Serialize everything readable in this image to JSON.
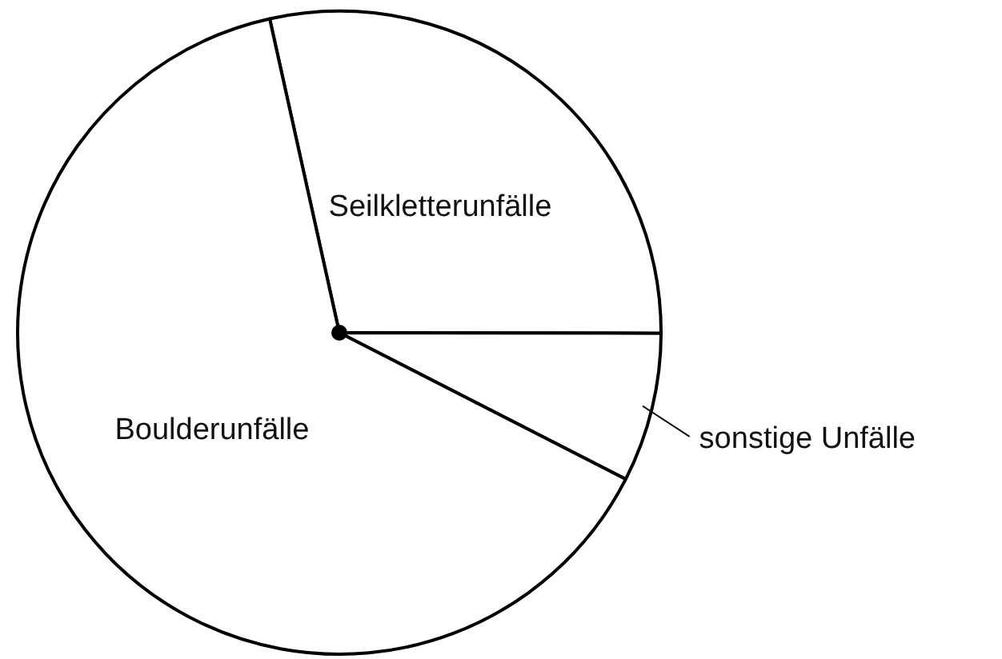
{
  "chart_data": {
    "type": "pie",
    "categories": [
      "Seilkletterunfälle",
      "sonstige Unfälle",
      "Boulderunfälle"
    ],
    "values": [
      28.5,
      7.5,
      64
    ],
    "colors": [
      "#ffffff",
      "#ffffff",
      "#ffffff"
    ],
    "legend": false
  }
}
